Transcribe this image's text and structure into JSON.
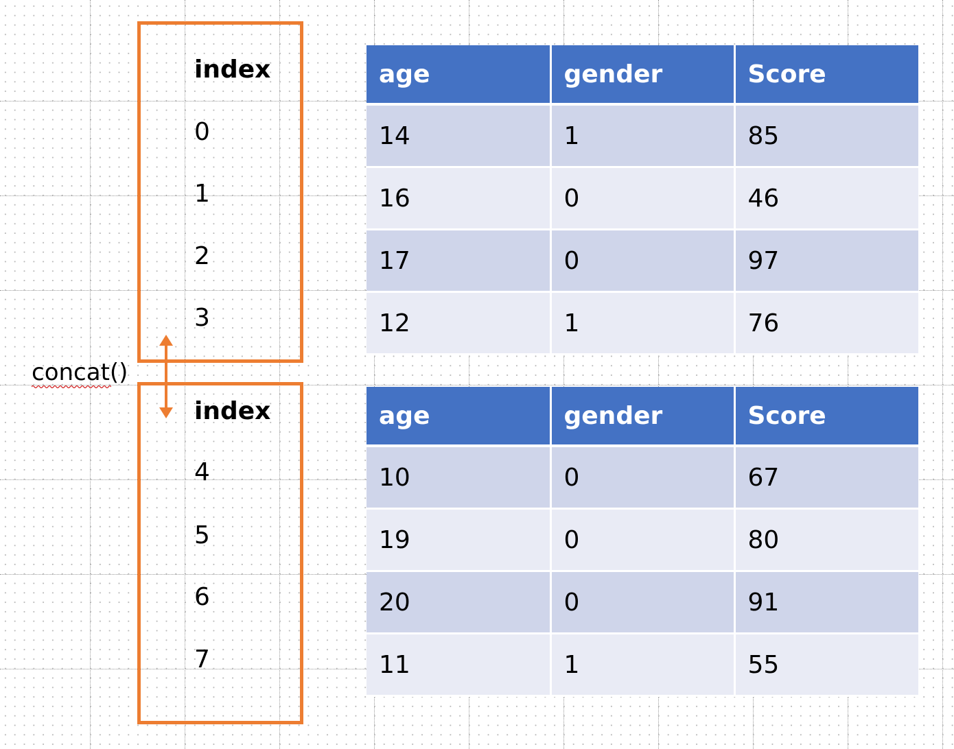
{
  "top_block": {
    "index_header": "index",
    "index_values": [
      "0",
      "1",
      "2",
      "3"
    ],
    "columns": [
      "age",
      "gender",
      "Score"
    ],
    "rows": [
      [
        "14",
        "1",
        "85"
      ],
      [
        "16",
        "0",
        "46"
      ],
      [
        "17",
        "0",
        "97"
      ],
      [
        "12",
        "1",
        "76"
      ]
    ]
  },
  "bottom_block": {
    "index_header": "index",
    "index_values": [
      "4",
      "5",
      "6",
      "7"
    ],
    "columns": [
      "age",
      "gender",
      "Score"
    ],
    "rows": [
      [
        "10",
        "0",
        "67"
      ],
      [
        "19",
        "0",
        "80"
      ],
      [
        "20",
        "0",
        "91"
      ],
      [
        "11",
        "1",
        "55"
      ]
    ]
  },
  "operation_label": "concat()",
  "colors": {
    "index_box_border": "#ED7D31",
    "header_fill": "#4472C4",
    "row_dark": "#CFD5EA",
    "row_light": "#E9EBF5",
    "arrow": "#ED7D31"
  }
}
